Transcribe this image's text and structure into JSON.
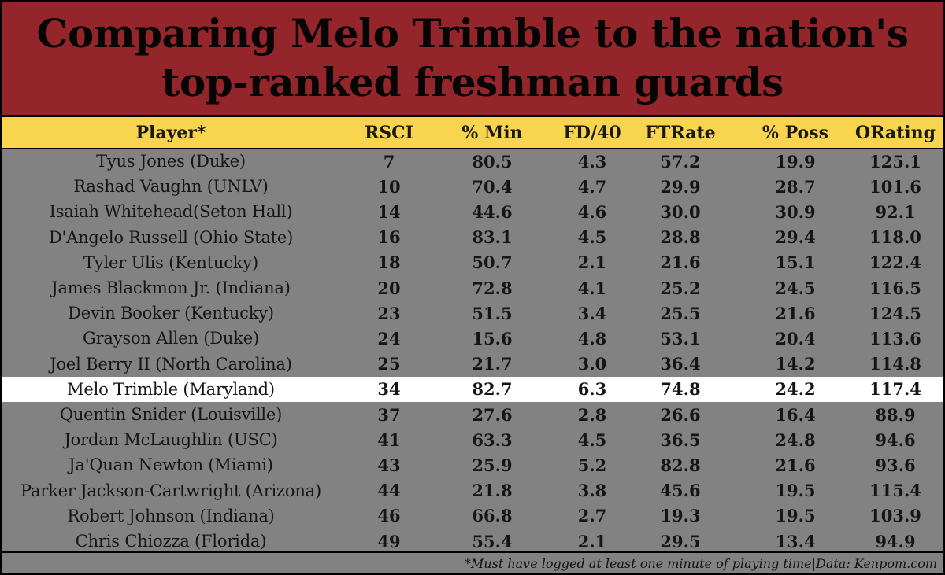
{
  "title": {
    "line1": "Comparing Melo Trimble to the nation's",
    "line2": "top-ranked freshman guards"
  },
  "colors": {
    "title_background": "#93252b",
    "header_background": "#f9d44f",
    "row_background": "#828282",
    "highlight_row_background": "#ffffff"
  },
  "header": {
    "player": "Player*",
    "rsci": "RSCI",
    "min": "% Min",
    "fd40": "FD/40",
    "ftrate": "FTRate",
    "poss": "% Poss",
    "orating": "ORating"
  },
  "footer": {
    "note": "*Must have logged at least one minute of playing time|Data: Kenpom.com"
  },
  "highlighted_player": "Melo Trimble (Maryland)",
  "chart_data": {
    "type": "table",
    "title": "Comparing Melo Trimble to the nation's top-ranked freshman guards",
    "columns": [
      "Player*",
      "RSCI",
      "% Min",
      "FD/40",
      "FTRate",
      "% Poss",
      "ORating"
    ],
    "rows": [
      {
        "player": "Tyus Jones (Duke)",
        "rsci": "7",
        "min": "80.5",
        "fd40": "4.3",
        "ftrate": "57.2",
        "poss": "19.9",
        "orating": "125.1"
      },
      {
        "player": "Rashad Vaughn (UNLV)",
        "rsci": "10",
        "min": "70.4",
        "fd40": "4.7",
        "ftrate": "29.9",
        "poss": "28.7",
        "orating": "101.6"
      },
      {
        "player": "Isaiah Whitehead(Seton Hall)",
        "rsci": "14",
        "min": "44.6",
        "fd40": "4.6",
        "ftrate": "30.0",
        "poss": "30.9",
        "orating": "92.1"
      },
      {
        "player": "D'Angelo Russell (Ohio State)",
        "rsci": "16",
        "min": "83.1",
        "fd40": "4.5",
        "ftrate": "28.8",
        "poss": "29.4",
        "orating": "118.0"
      },
      {
        "player": "Tyler Ulis (Kentucky)",
        "rsci": "18",
        "min": "50.7",
        "fd40": "2.1",
        "ftrate": "21.6",
        "poss": "15.1",
        "orating": "122.4"
      },
      {
        "player": "James Blackmon Jr. (Indiana)",
        "rsci": "20",
        "min": "72.8",
        "fd40": "4.1",
        "ftrate": "25.2",
        "poss": "24.5",
        "orating": "116.5"
      },
      {
        "player": "Devin Booker (Kentucky)",
        "rsci": "23",
        "min": "51.5",
        "fd40": "3.4",
        "ftrate": "25.5",
        "poss": "21.6",
        "orating": "124.5"
      },
      {
        "player": "Grayson Allen (Duke)",
        "rsci": "24",
        "min": "15.6",
        "fd40": "4.8",
        "ftrate": "53.1",
        "poss": "20.4",
        "orating": "113.6"
      },
      {
        "player": "Joel Berry II (North Carolina)",
        "rsci": "25",
        "min": "21.7",
        "fd40": "3.0",
        "ftrate": "36.4",
        "poss": "14.2",
        "orating": "114.8"
      },
      {
        "player": "Melo Trimble (Maryland)",
        "rsci": "34",
        "min": "82.7",
        "fd40": "6.3",
        "ftrate": "74.8",
        "poss": "24.2",
        "orating": "117.4"
      },
      {
        "player": "Quentin Snider (Louisville)",
        "rsci": "37",
        "min": "27.6",
        "fd40": "2.8",
        "ftrate": "26.6",
        "poss": "16.4",
        "orating": "88.9"
      },
      {
        "player": "Jordan McLaughlin (USC)",
        "rsci": "41",
        "min": "63.3",
        "fd40": "4.5",
        "ftrate": "36.5",
        "poss": "24.8",
        "orating": "94.6"
      },
      {
        "player": "Ja'Quan Newton (Miami)",
        "rsci": "43",
        "min": "25.9",
        "fd40": "5.2",
        "ftrate": "82.8",
        "poss": "21.6",
        "orating": "93.6"
      },
      {
        "player": "Parker Jackson-Cartwright (Arizona)",
        "rsci": "44",
        "min": "21.8",
        "fd40": "3.8",
        "ftrate": "45.6",
        "poss": "19.5",
        "orating": "115.4"
      },
      {
        "player": "Robert Johnson (Indiana)",
        "rsci": "46",
        "min": "66.8",
        "fd40": "2.7",
        "ftrate": "19.3",
        "poss": "19.5",
        "orating": "103.9"
      },
      {
        "player": "Chris Chiozza (Florida)",
        "rsci": "49",
        "min": "55.4",
        "fd40": "2.1",
        "ftrate": "29.5",
        "poss": "13.4",
        "orating": "94.9"
      }
    ],
    "footnote": "*Must have logged at least one minute of playing time|Data: Kenpom.com"
  }
}
